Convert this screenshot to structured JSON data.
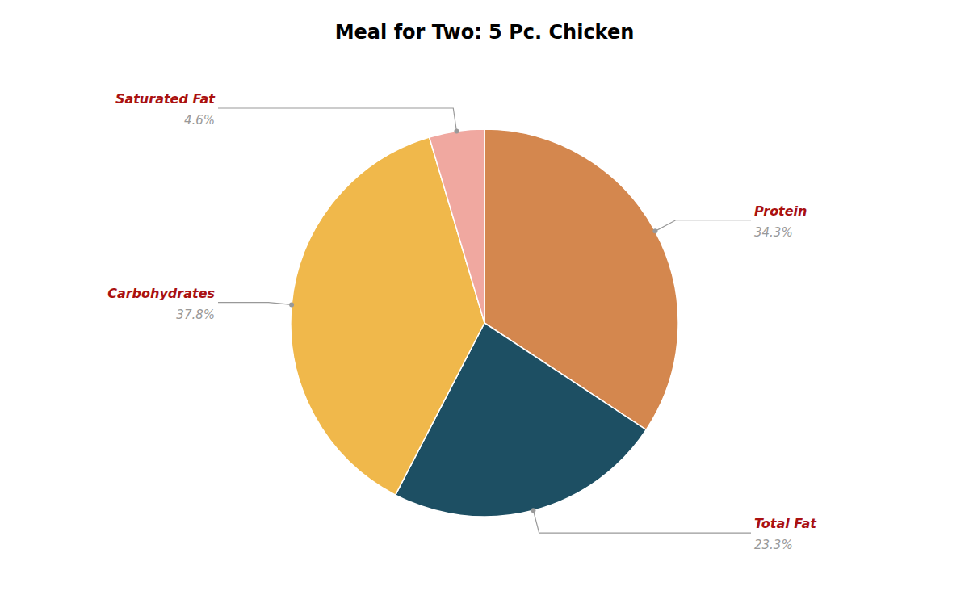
{
  "chart_data": {
    "type": "pie",
    "title": "Meal for Two: 5 Pc. Chicken",
    "categories": [
      "Protein",
      "Total Fat",
      "Carbohydrates",
      "Saturated Fat"
    ],
    "values": [
      34.3,
      23.3,
      37.8,
      4.6
    ],
    "value_labels": [
      "34.3%",
      "23.3%",
      "37.8%",
      "4.6%"
    ],
    "colors": [
      "#D4874E",
      "#1D4F63",
      "#F0B84B",
      "#F0A8A0"
    ],
    "data_labels": true
  }
}
